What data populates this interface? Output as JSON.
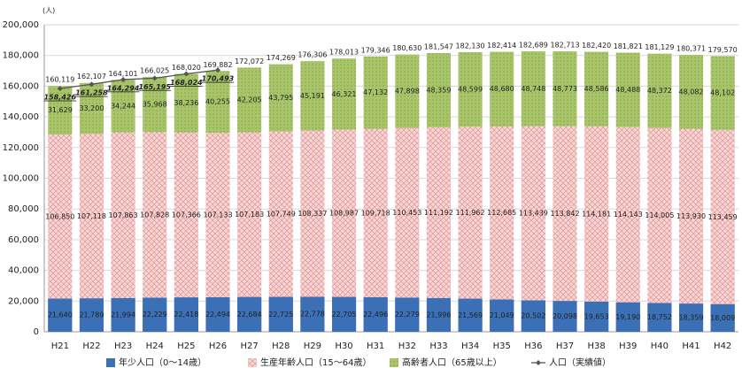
{
  "chart_data": {
    "type": "stacked_bar_line",
    "y_label": "(人)",
    "categories": [
      "H21",
      "H22",
      "H23",
      "H24",
      "H25",
      "H26",
      "H27",
      "H28",
      "H29",
      "H30",
      "H31",
      "H32",
      "H33",
      "H34",
      "H35",
      "H36",
      "H37",
      "H38",
      "H39",
      "H40",
      "H41",
      "H42"
    ],
    "series": [
      {
        "name": "年少人口（0～14歳）",
        "color": "#3b6fb6",
        "values": [
          21640,
          21789,
          21994,
          22229,
          22418,
          22494,
          22684,
          22725,
          22778,
          22705,
          22496,
          22279,
          21996,
          21569,
          21049,
          20502,
          20098,
          19653,
          19190,
          18752,
          18359,
          18009
        ],
        "value_labels": [
          "21,640",
          "21,789",
          "21,994",
          "22,229",
          "22,418",
          "22,494",
          "22,684",
          "22,725",
          "22,778",
          "22,705",
          "22,496",
          "22,279",
          "21,996",
          "21,569",
          "21,049",
          "20,502",
          "20,098",
          "19,653",
          "19,190",
          "18,752",
          "18,359",
          "18,009"
        ]
      },
      {
        "name": "生産年齢人口（15～64歳）",
        "color": "#f1c3c3",
        "values": [
          106850,
          107118,
          107863,
          107828,
          107366,
          107133,
          107183,
          107749,
          108337,
          108987,
          109718,
          110453,
          111192,
          111962,
          112685,
          113439,
          113842,
          114181,
          114143,
          114005,
          113930,
          113459
        ],
        "value_labels": [
          "106,850",
          "107,118",
          "107,863",
          "107,828",
          "107,366",
          "107,133",
          "107,183",
          "107,749",
          "108,337",
          "108,987",
          "109,718",
          "110,453",
          "111,192",
          "111,962",
          "112,685",
          "113,439",
          "113,842",
          "114,181",
          "114,143",
          "114,005",
          "113,930",
          "113,459"
        ]
      },
      {
        "name": "高齢者人口（65歳以上）",
        "color": "#9bbb59",
        "values": [
          31629,
          33200,
          34244,
          35968,
          38236,
          40255,
          42205,
          43795,
          45191,
          46321,
          47132,
          47898,
          48359,
          48599,
          48680,
          48748,
          48773,
          48586,
          48488,
          48372,
          48082,
          48102
        ],
        "value_labels": [
          "31,629",
          "33,200",
          "34,244",
          "35,968",
          "38,236",
          "40,255",
          "42,205",
          "43,795",
          "45,191",
          "46,321",
          "47,132",
          "47,898",
          "48,359",
          "48,599",
          "48,680",
          "48,748",
          "48,773",
          "48,586",
          "48,488",
          "48,372",
          "48,082",
          "48,102"
        ]
      },
      {
        "name": "人口（実績値）",
        "type": "line",
        "color": "#555555",
        "label_color": "#8b1a1a",
        "values": [
          158426,
          161258,
          164294,
          165195,
          168024,
          170493,
          null,
          null,
          null,
          null,
          null,
          null,
          null,
          null,
          null,
          null,
          null,
          null,
          null,
          null,
          null,
          null
        ],
        "value_labels": [
          "158,426",
          "161,258",
          "164,294",
          "165,195",
          "168,024",
          "170,493",
          null,
          null,
          null,
          null,
          null,
          null,
          null,
          null,
          null,
          null,
          null,
          null,
          null,
          null,
          null,
          null
        ]
      }
    ],
    "totals": {
      "values": [
        160119,
        162107,
        164101,
        166025,
        168020,
        169882,
        172072,
        174269,
        176306,
        178013,
        179346,
        180630,
        181547,
        182130,
        182414,
        182689,
        182713,
        182420,
        181821,
        181129,
        180371,
        179570
      ],
      "value_labels": [
        "160,119",
        "162,107",
        "164,101",
        "166,025",
        "168,020",
        "169,882",
        "172,072",
        "174,269",
        "176,306",
        "178,013",
        "179,346",
        "180,630",
        "181,547",
        "182,130",
        "182,414",
        "182,689",
        "182,713",
        "182,420",
        "181,821",
        "181,129",
        "180,371",
        "179,570"
      ]
    },
    "ylim": [
      0,
      200000
    ],
    "yticks": [
      {
        "value": 0,
        "label": "0"
      },
      {
        "value": 20000,
        "label": "20,000"
      },
      {
        "value": 40000,
        "label": "40,000"
      },
      {
        "value": 60000,
        "label": "60,000"
      },
      {
        "value": 80000,
        "label": "80,000"
      },
      {
        "value": 100000,
        "label": "100,000"
      },
      {
        "value": 120000,
        "label": "120,000"
      },
      {
        "value": 140000,
        "label": "140,000"
      },
      {
        "value": 160000,
        "label": "160,000"
      },
      {
        "value": 180000,
        "label": "180,000"
      },
      {
        "value": 200000,
        "label": "200,000"
      }
    ],
    "grid": true
  }
}
